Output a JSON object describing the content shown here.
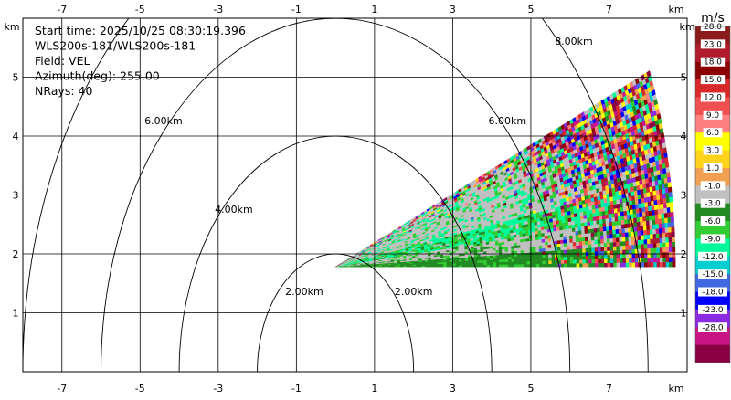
{
  "chart_data": {
    "type": "heatmap",
    "field": "VEL",
    "info_lines": [
      "Start time: 2025/10/25 08:30:19.396",
      "WLS200s-181/WLS200s-181",
      "Field: VEL",
      "Azimuth(deg): 255.00",
      "NRays: 40"
    ],
    "x_unit_label": "km",
    "y_unit_label": "km",
    "xlim": [
      -8.0,
      9.0
    ],
    "ylim": [
      0.0,
      6.0
    ],
    "x_ticks": [
      -7,
      -5,
      -3,
      -1,
      1,
      3,
      5,
      7
    ],
    "y_ticks": [
      1,
      2,
      3,
      4,
      5
    ],
    "grid": true,
    "range_rings": [
      {
        "radius_km": 2,
        "label": "2.00km"
      },
      {
        "radius_km": 4,
        "label": "4.00km"
      },
      {
        "radius_km": 6,
        "label": "6.00km"
      },
      {
        "radius_km": 8,
        "label": "8.00km"
      }
    ],
    "sector": {
      "apex_km": [
        0.0,
        1.78
      ],
      "range_start_km": 0.0,
      "range_end_km": 8.7,
      "elevation_start_deg": 0.0,
      "elevation_end_deg": 22.5,
      "n_rays": 40
    },
    "colorbar": {
      "title": "m/s",
      "bins": [
        {
          "label": "28.0",
          "color": "#8b1a1a"
        },
        {
          "label": "23.0",
          "color": "#b01c2e"
        },
        {
          "label": "18.0",
          "color": "#8b0000"
        },
        {
          "label": "15.0",
          "color": "#d82a2a"
        },
        {
          "label": "12.0",
          "color": "#f04f4f"
        },
        {
          "label": "9.0",
          "color": "#ff8080"
        },
        {
          "label": "6.0",
          "color": "#ffff00"
        },
        {
          "label": "3.0",
          "color": "#ffd21c"
        },
        {
          "label": "1.0",
          "color": "#f0a050"
        },
        {
          "label": "-1.0",
          "color": "#c0c0c0"
        },
        {
          "label": "-3.0",
          "color": "#228b22"
        },
        {
          "label": "-6.0",
          "color": "#32cd32"
        },
        {
          "label": "-9.0",
          "color": "#00fa9a"
        },
        {
          "label": "-12.0",
          "color": "#00ced1"
        },
        {
          "label": "-15.0",
          "color": "#4169e1"
        },
        {
          "label": "-18.0",
          "color": "#0000ff"
        },
        {
          "label": "-23.0",
          "color": "#8a2be2"
        },
        {
          "label": "-28.0",
          "color": "#c71585"
        },
        {
          "label": "",
          "color": "#8b0045"
        }
      ]
    }
  }
}
